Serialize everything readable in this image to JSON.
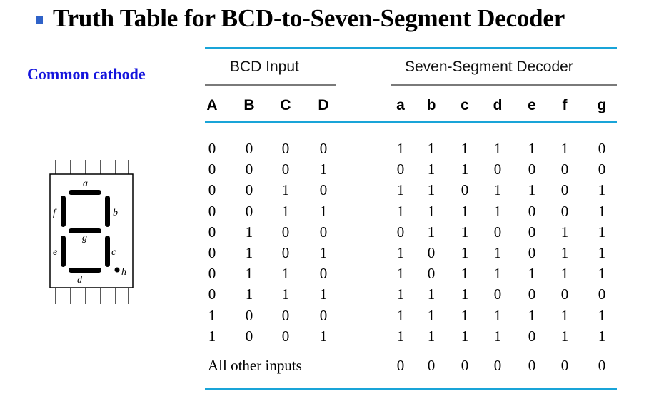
{
  "slide": {
    "title": "Truth Table for BCD-to-Seven-Segment Decoder",
    "subtitle": "Common cathode",
    "bullet_color": "#2f62c8",
    "subtitle_color": "#1515dd",
    "rule_color": "#19a4d8"
  },
  "display": {
    "segment_labels": {
      "a": "a",
      "b": "b",
      "c": "c",
      "d": "d",
      "e": "e",
      "f": "f",
      "g": "g",
      "h": "h"
    }
  },
  "table": {
    "input_group": "BCD Input",
    "output_group": "Seven-Segment Decoder",
    "input_headers": [
      "A",
      "B",
      "C",
      "D"
    ],
    "output_headers": [
      "a",
      "b",
      "c",
      "d",
      "e",
      "f",
      "g"
    ],
    "rows": [
      {
        "inputs": [
          "0",
          "0",
          "0",
          "0"
        ],
        "outputs": [
          "1",
          "1",
          "1",
          "1",
          "1",
          "1",
          "0"
        ]
      },
      {
        "inputs": [
          "0",
          "0",
          "0",
          "1"
        ],
        "outputs": [
          "0",
          "1",
          "1",
          "0",
          "0",
          "0",
          "0"
        ]
      },
      {
        "inputs": [
          "0",
          "0",
          "1",
          "0"
        ],
        "outputs": [
          "1",
          "1",
          "0",
          "1",
          "1",
          "0",
          "1"
        ]
      },
      {
        "inputs": [
          "0",
          "0",
          "1",
          "1"
        ],
        "outputs": [
          "1",
          "1",
          "1",
          "1",
          "0",
          "0",
          "1"
        ]
      },
      {
        "inputs": [
          "0",
          "1",
          "0",
          "0"
        ],
        "outputs": [
          "0",
          "1",
          "1",
          "0",
          "0",
          "1",
          "1"
        ]
      },
      {
        "inputs": [
          "0",
          "1",
          "0",
          "1"
        ],
        "outputs": [
          "1",
          "0",
          "1",
          "1",
          "0",
          "1",
          "1"
        ]
      },
      {
        "inputs": [
          "0",
          "1",
          "1",
          "0"
        ],
        "outputs": [
          "1",
          "0",
          "1",
          "1",
          "1",
          "1",
          "1"
        ]
      },
      {
        "inputs": [
          "0",
          "1",
          "1",
          "1"
        ],
        "outputs": [
          "1",
          "1",
          "1",
          "0",
          "0",
          "0",
          "0"
        ]
      },
      {
        "inputs": [
          "1",
          "0",
          "0",
          "0"
        ],
        "outputs": [
          "1",
          "1",
          "1",
          "1",
          "1",
          "1",
          "1"
        ]
      },
      {
        "inputs": [
          "1",
          "0",
          "0",
          "1"
        ],
        "outputs": [
          "1",
          "1",
          "1",
          "1",
          "0",
          "1",
          "1"
        ]
      }
    ],
    "other_label": "All other inputs",
    "other_outputs": [
      "0",
      "0",
      "0",
      "0",
      "0",
      "0",
      "0"
    ]
  }
}
